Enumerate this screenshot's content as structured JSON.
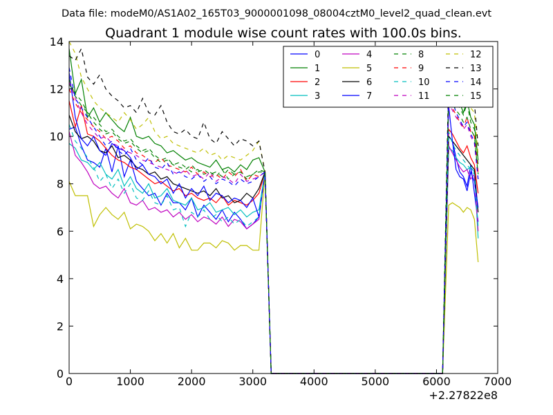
{
  "chart_data": {
    "type": "line",
    "file_label": "Data file: modeM0/AS1A02_165T03_9000001098_08004cztM0_level2_quad_clean.evt",
    "title": "Quadrant 1 module wise count rates with 100.0s bins.",
    "xlabel": "",
    "ylabel": "",
    "x_offset_label": "+2.27822e8",
    "xlim": [
      0,
      7000
    ],
    "ylim": [
      0,
      14
    ],
    "xticks": [
      "0",
      "1000",
      "2000",
      "3000",
      "4000",
      "5000",
      "6000",
      "7000"
    ],
    "yticks": [
      "0",
      "2",
      "4",
      "6",
      "8",
      "10",
      "12",
      "14"
    ],
    "grid": false,
    "legend_position": "top-right",
    "series": [
      {
        "name": "0",
        "color": "#0000ff",
        "dash": false,
        "start": [
          10.3,
          10.4,
          9.6,
          9.0,
          8.9,
          8.7,
          9.5,
          8.5,
          9.6,
          8.3,
          9.0,
          8.1,
          7.8,
          7.5,
          7.6,
          7.1,
          7.6,
          7.2,
          7.2,
          6.9,
          7.4,
          6.6,
          7.1,
          6.8,
          6.5,
          6.9,
          6.4,
          6.8,
          6.5,
          6.1,
          6.3,
          6.6
        ],
        "end": [
          10.0,
          9.8,
          9.1,
          8.5,
          8.3,
          7.9,
          8.8,
          7.6,
          6.4
        ]
      },
      {
        "name": "1",
        "color": "#008000",
        "dash": false,
        "start": [
          13.7,
          11.8,
          12.4,
          10.8,
          11.2,
          10.6,
          11.0,
          10.7,
          10.4,
          10.2,
          10.8,
          10.0,
          9.9,
          10.0,
          9.7,
          9.6,
          9.3,
          9.4,
          9.2,
          9.0,
          9.1,
          8.9,
          8.8,
          8.7,
          9.0,
          8.6,
          8.7,
          8.5,
          8.8,
          8.6,
          9.0,
          9.1
        ],
        "end": [
          11.9,
          11.8,
          11.7,
          11.4,
          11.0,
          11.5,
          10.8,
          10.5,
          9.0
        ]
      },
      {
        "name": "2",
        "color": "#ff0000",
        "dash": false,
        "start": [
          11.5,
          10.4,
          11.3,
          10.1,
          10.0,
          9.8,
          9.5,
          9.2,
          9.0,
          8.9,
          8.7,
          8.6,
          8.4,
          8.2,
          8.0,
          8.1,
          7.9,
          7.7,
          7.8,
          7.5,
          7.6,
          7.4,
          7.3,
          7.4,
          7.2,
          7.5,
          7.1,
          7.3,
          7.2,
          7.1,
          7.3,
          7.6
        ],
        "end": [
          10.3,
          10.1,
          9.8,
          9.5,
          9.3,
          9.6,
          9.1,
          8.8,
          7.6
        ]
      },
      {
        "name": "3",
        "color": "#00bfbf",
        "dash": false,
        "start": [
          9.7,
          9.5,
          9.0,
          8.9,
          8.6,
          8.9,
          8.4,
          8.2,
          8.6,
          7.9,
          8.3,
          7.8,
          7.6,
          8.0,
          7.4,
          7.5,
          7.8,
          7.3,
          7.2,
          7.1,
          7.4,
          6.9,
          7.0,
          7.2,
          6.8,
          6.9,
          7.0,
          6.7,
          6.9,
          6.6,
          6.8,
          6.9
        ],
        "end": [
          9.5,
          9.4,
          9.1,
          8.9,
          8.8,
          8.6,
          8.7,
          8.5,
          5.7
        ]
      },
      {
        "name": "4",
        "color": "#bf00bf",
        "dash": false,
        "start": [
          10.2,
          9.2,
          8.9,
          8.5,
          8.0,
          7.8,
          7.9,
          7.6,
          7.4,
          7.8,
          7.2,
          7.1,
          7.3,
          6.9,
          7.0,
          6.8,
          6.9,
          6.6,
          6.8,
          6.5,
          6.7,
          6.4,
          6.6,
          6.5,
          6.3,
          6.6,
          6.2,
          6.5,
          6.4,
          6.1,
          6.3,
          6.5
        ],
        "end": [
          9.6,
          9.3,
          9.0,
          8.7,
          8.5,
          8.6,
          8.2,
          8.4,
          6.0
        ]
      },
      {
        "name": "5",
        "color": "#bfbf00",
        "dash": false,
        "start": [
          8.1,
          7.5,
          7.5,
          7.5,
          6.2,
          6.7,
          7.0,
          6.7,
          6.5,
          6.8,
          6.1,
          6.3,
          6.2,
          6.0,
          5.6,
          5.9,
          5.5,
          5.9,
          5.3,
          5.7,
          5.2,
          5.2,
          5.5,
          5.5,
          5.3,
          5.6,
          5.5,
          5.2,
          5.4,
          5.4,
          5.2,
          5.2
        ],
        "end": [
          7.1,
          7.2,
          7.1,
          7.0,
          6.8,
          7.0,
          6.9,
          6.5,
          4.7
        ]
      },
      {
        "name": "6",
        "color": "#000000",
        "dash": false,
        "start": [
          10.9,
          10.2,
          9.9,
          10.0,
          9.8,
          9.4,
          9.3,
          9.6,
          9.1,
          9.2,
          9.0,
          8.7,
          8.6,
          8.4,
          8.5,
          8.2,
          8.3,
          8.0,
          7.9,
          7.8,
          7.7,
          7.6,
          7.7,
          7.5,
          7.8,
          7.4,
          7.5,
          7.2,
          7.3,
          7.6,
          7.4,
          7.8
        ],
        "end": [
          10.0,
          9.8,
          9.6,
          9.4,
          9.2,
          9.0,
          8.8,
          8.6,
          6.8
        ]
      },
      {
        "name": "7",
        "color": "#0000ff",
        "dash": false,
        "start": [
          12.7,
          10.8,
          9.9,
          9.6,
          10.0,
          9.4,
          9.2,
          9.7,
          9.5,
          9.4,
          9.1,
          8.6,
          8.8,
          8.4,
          8.3,
          8.0,
          8.2,
          7.6,
          8.0,
          7.4,
          7.8,
          7.5,
          7.9,
          7.3,
          7.6,
          7.5,
          7.2,
          7.4,
          7.3,
          7.0,
          7.4,
          6.6
        ],
        "end": [
          11.3,
          9.8,
          8.6,
          8.3,
          8.2,
          7.7,
          8.5,
          8.1,
          7.0
        ]
      },
      {
        "name": "8",
        "color": "#008000",
        "dash": true,
        "start": [
          12.2,
          11.8,
          11.5,
          11.0,
          10.8,
          10.5,
          10.2,
          10.3,
          10.0,
          9.8,
          9.9,
          9.6,
          9.4,
          9.5,
          9.2,
          9.0,
          9.1,
          8.8,
          8.9,
          8.7,
          8.5,
          8.6,
          8.4,
          8.5,
          8.3,
          8.6,
          8.2,
          8.4,
          8.5,
          8.3,
          8.4,
          8.6
        ],
        "end": [
          12.0,
          11.6,
          11.5,
          11.2,
          10.9,
          11.4,
          10.6,
          10.3,
          8.8
        ]
      },
      {
        "name": "9",
        "color": "#ff0000",
        "dash": true,
        "start": [
          12.0,
          11.4,
          11.0,
          10.7,
          10.4,
          10.2,
          9.9,
          10.0,
          9.8,
          9.5,
          9.6,
          9.3,
          9.2,
          9.0,
          8.9,
          9.1,
          8.8,
          8.7,
          8.6,
          8.5,
          8.7,
          8.4,
          8.5,
          8.3,
          8.4,
          8.2,
          8.5,
          8.3,
          8.6,
          8.1,
          8.4,
          8.3
        ],
        "end": [
          11.6,
          11.2,
          10.9,
          10.6,
          10.4,
          10.8,
          10.2,
          10.0,
          8.5
        ]
      },
      {
        "name": "10",
        "color": "#00bfbf",
        "dash": true,
        "start": [
          10.5,
          9.8,
          9.5,
          9.1,
          8.7,
          8.1,
          8.4,
          7.8,
          8.2,
          7.6,
          8.0,
          7.4,
          7.3,
          7.7,
          7.2,
          7.1,
          7.5,
          6.9,
          7.0,
          6.2,
          6.8,
          6.6,
          6.9,
          6.5,
          6.7,
          6.4,
          6.6,
          6.3,
          6.5,
          6.2,
          6.4,
          6.6
        ],
        "end": [
          10.2,
          9.7,
          9.4,
          9.2,
          9.0,
          8.8,
          8.6,
          8.4,
          6.2
        ]
      },
      {
        "name": "11",
        "color": "#bf00bf",
        "dash": true,
        "start": [
          12.3,
          11.6,
          11.0,
          10.5,
          10.2,
          9.9,
          10.0,
          9.7,
          9.6,
          9.4,
          9.3,
          9.2,
          9.0,
          8.9,
          8.8,
          8.7,
          8.6,
          8.5,
          8.4,
          8.6,
          8.3,
          8.4,
          8.2,
          8.5,
          8.1,
          8.3,
          8.2,
          8.0,
          8.4,
          8.1,
          8.2,
          8.3
        ],
        "end": [
          11.4,
          11.1,
          10.8,
          10.6,
          10.3,
          10.5,
          10.0,
          9.7,
          8.2
        ]
      },
      {
        "name": "12",
        "color": "#bfbf00",
        "dash": true,
        "start": [
          14.0,
          13.5,
          12.5,
          12.0,
          11.5,
          11.2,
          11.0,
          10.8,
          10.6,
          11.0,
          10.7,
          10.3,
          10.5,
          10.8,
          10.2,
          9.9,
          10.0,
          9.7,
          9.6,
          9.5,
          9.4,
          9.3,
          9.5,
          9.2,
          9.3,
          9.0,
          9.2,
          9.1,
          9.0,
          9.2,
          9.4,
          9.8
        ],
        "end": [
          12.3,
          12.1,
          11.9,
          11.6,
          11.4,
          11.7,
          11.2,
          11.0,
          9.2
        ]
      },
      {
        "name": "13",
        "color": "#000000",
        "dash": true,
        "start": [
          13.4,
          13.2,
          13.7,
          12.5,
          12.2,
          12.6,
          12.0,
          11.7,
          11.5,
          11.2,
          11.3,
          11.0,
          11.6,
          11.0,
          10.9,
          11.3,
          10.6,
          10.2,
          10.1,
          10.3,
          10.0,
          9.9,
          10.6,
          9.9,
          9.7,
          10.2,
          9.9,
          9.6,
          9.9,
          9.8,
          9.6,
          9.8
        ],
        "end": [
          12.6,
          12.4,
          12.2,
          12.0,
          11.8,
          12.1,
          11.6,
          11.4,
          9.6
        ]
      },
      {
        "name": "14",
        "color": "#0000ff",
        "dash": true,
        "start": [
          12.9,
          11.6,
          11.2,
          10.8,
          10.4,
          10.0,
          9.6,
          9.8,
          9.4,
          9.2,
          9.5,
          9.0,
          8.8,
          9.1,
          8.7,
          8.6,
          8.9,
          8.4,
          8.5,
          8.3,
          8.2,
          8.4,
          8.1,
          8.3,
          8.0,
          8.2,
          8.1,
          7.9,
          8.2,
          8.0,
          8.1,
          8.3
        ],
        "end": [
          12.0,
          11.5,
          11.0,
          10.7,
          10.4,
          10.6,
          10.1,
          9.8,
          8.2
        ]
      },
      {
        "name": "15",
        "color": "#008000",
        "dash": true,
        "start": [
          12.4,
          11.7,
          11.3,
          11.0,
          10.6,
          10.3,
          10.1,
          10.2,
          9.9,
          9.7,
          9.8,
          9.5,
          9.3,
          9.4,
          9.1,
          8.9,
          9.0,
          8.8,
          8.7,
          8.6,
          8.8,
          8.5,
          8.6,
          8.4,
          8.5,
          8.3,
          8.6,
          8.4,
          8.5,
          8.2,
          8.4,
          8.5
        ],
        "end": [
          11.8,
          11.4,
          11.1,
          10.9,
          10.6,
          10.8,
          10.3,
          10.0,
          8.4
        ]
      }
    ]
  }
}
